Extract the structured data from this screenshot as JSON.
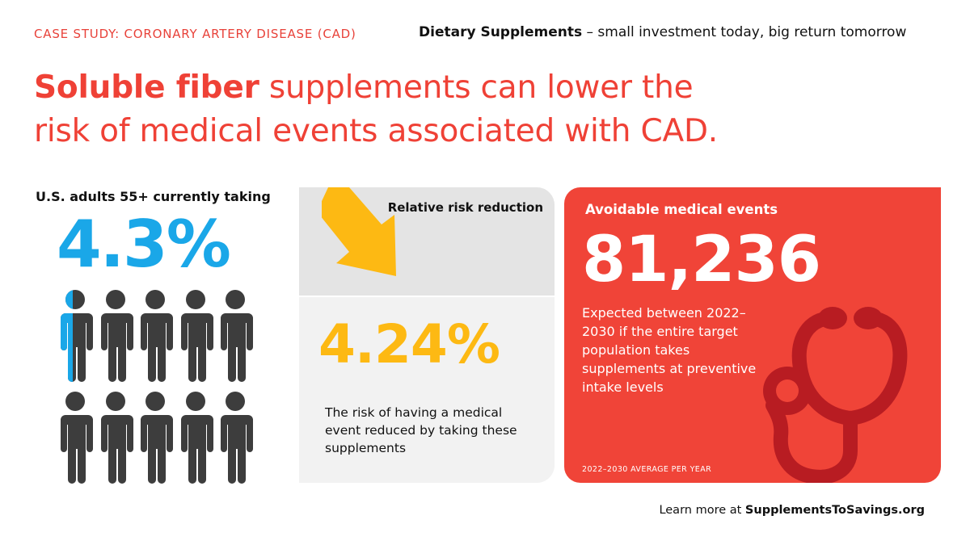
{
  "header": {
    "case_label": "CASE STUDY: CORONARY ARTERY DISEASE (CAD)",
    "tagline_bold": "Dietary Supplements",
    "tagline_rest": " – small investment today, big return tomorrow"
  },
  "headline": {
    "strong": "Soluble fiber",
    "line1_rest": " supplements can lower the",
    "line2": "risk of medical events associated with CAD."
  },
  "adults": {
    "label": "U.S. adults 55+ currently taking",
    "value": "4.3%",
    "fraction_highlighted_of_first_figure": 0.43,
    "figure_count": 10,
    "highlight_color": "#1aa7e8",
    "figure_color": "#3d3d3d"
  },
  "risk": {
    "label": "Relative risk reduction",
    "value": "4.24%",
    "description": "The risk of having a medical event reduced by taking these supplements",
    "arrow_color": "#fdb913",
    "icon": "arrow-down-icon"
  },
  "events": {
    "label": "Avoidable medical events",
    "value": "81,236",
    "description": "Expected between 2022–2030 if the entire target population takes supplements at preventive intake levels",
    "footnote": "2022–2030 AVERAGE PER YEAR",
    "panel_color": "#f04438",
    "icon": "stethoscope-icon"
  },
  "footer": {
    "prefix": "Learn more at ",
    "site": "SupplementsToSavings.org"
  },
  "colors": {
    "accent_red": "#ef4136",
    "accent_blue": "#1aa7e8",
    "accent_yellow": "#fdb913"
  }
}
